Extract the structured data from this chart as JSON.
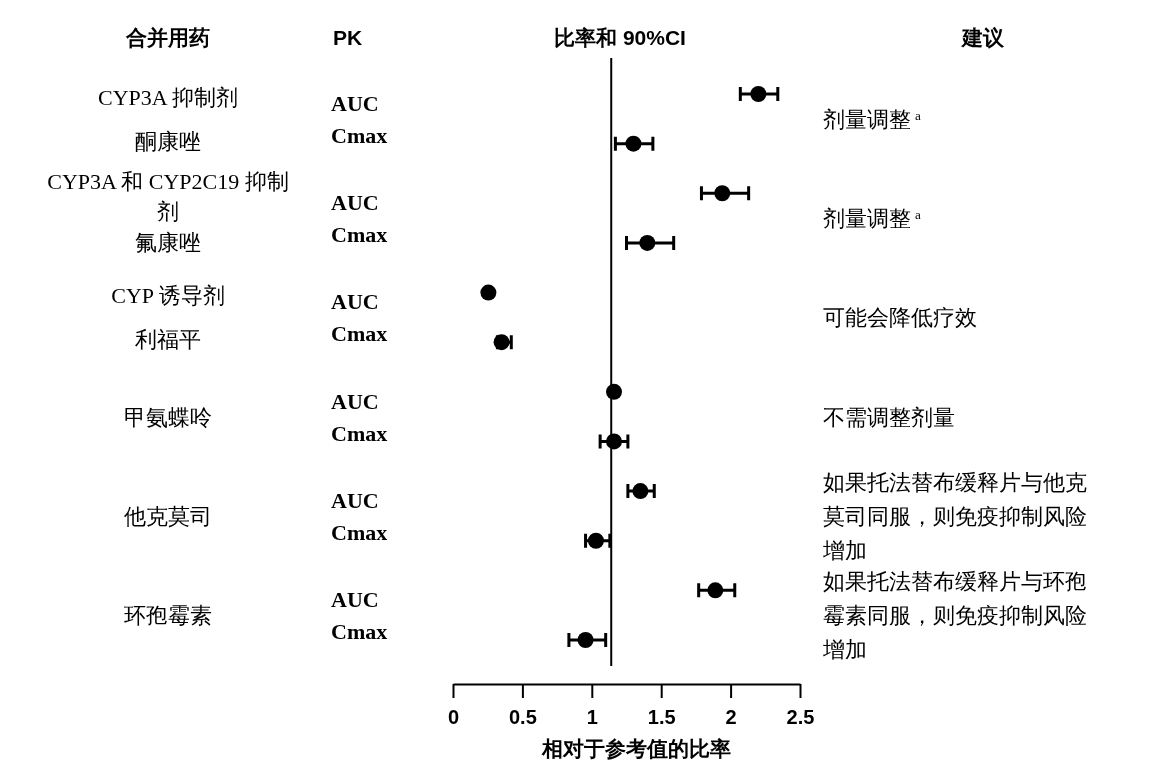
{
  "chart_data": {
    "type": "scatter",
    "orientation": "horizontal",
    "title": "比率和 90%CI",
    "xlabel": "相对于参考值的比率",
    "categories": [
      null,
      null,
      null,
      null,
      null,
      null,
      null,
      null,
      null,
      null,
      null,
      null
    ],
    "values": [
      2.2,
      1.3,
      1.94,
      1.4,
      0.255,
      0.35,
      1.16,
      1.16,
      1.35,
      1.03,
      1.89,
      0.955
    ],
    "errors": [
      [
        2.07,
        2.34
      ],
      [
        1.17,
        1.44
      ],
      [
        1.79,
        2.13
      ],
      [
        1.25,
        1.59
      ],
      null,
      [
        0.32,
        0.42
      ],
      null,
      [
        1.06,
        1.26
      ],
      [
        1.26,
        1.45
      ],
      [
        0.955,
        1.13
      ],
      [
        1.77,
        2.03
      ],
      [
        0.835,
        1.1
      ]
    ],
    "color": "#000000",
    "marker": "circle",
    "tick_labels": "x",
    "xlim": [
      0,
      2.5
    ],
    "xticks": [
      0,
      0.5,
      1,
      1.5,
      2,
      2.5
    ],
    "ref_lines": [
      {
        "axis": "x",
        "value": 1.14,
        "color": "#000000"
      }
    ],
    "annotations": [
      "合并用药",
      "PK",
      "建议",
      "CYP3A 抑制剂",
      "酮康唑",
      "CYP3A 和 CYP2C19 抑制剂",
      "氟康唑",
      "CYP 诱导剂",
      "利福平",
      "甲氨蝶呤",
      "他克莫司",
      "环孢霉素",
      "AUC",
      "Cmax",
      "AUC",
      "Cmax",
      "AUC",
      "Cmax",
      "AUC",
      "Cmax",
      "AUC",
      "Cmax",
      "AUC",
      "Cmax",
      "剂量调整$^{a}$",
      "剂量调整$^{a}$",
      "可能会降低疗效",
      "不需调整剂量",
      "如果托法替布缓释片与他克莫司同服，则免疫抑制风险增加",
      "如果托法替布缓释片与环孢霉素同服，则免疫抑制风险增加"
    ]
  }
}
